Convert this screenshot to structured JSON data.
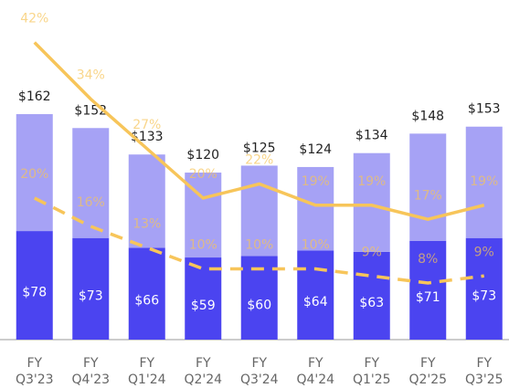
{
  "chart_data": {
    "type": "stacked-bar-line",
    "categories": [
      [
        "FY",
        "Q3'23"
      ],
      [
        "FY",
        "Q4'23"
      ],
      [
        "FY",
        "Q1'24"
      ],
      [
        "FY",
        "Q2'24"
      ],
      [
        "FY",
        "Q3'24"
      ],
      [
        "FY",
        "Q4'24"
      ],
      [
        "FY",
        "Q1'25"
      ],
      [
        "FY",
        "Q2'25"
      ],
      [
        "FY",
        "Q3'25"
      ]
    ],
    "ylim": [
      0,
      244
    ],
    "y2lim": [
      0,
      48
    ],
    "series": [
      {
        "kind": "bar",
        "color": "#4b44f0",
        "values": [
          78,
          73,
          66,
          59,
          60,
          64,
          63,
          71,
          73
        ],
        "value_labels": [
          "$78",
          "$73",
          "$66",
          "$59",
          "$60",
          "$64",
          "$63",
          "$71",
          "$73"
        ]
      },
      {
        "kind": "bar",
        "color": "#a6a2f5",
        "values": [
          84,
          79,
          67,
          61,
          65,
          60,
          71,
          77,
          80
        ]
      },
      {
        "kind": "line",
        "axis": "y2",
        "color": "#f7c55a",
        "dash": false,
        "values": [
          42,
          34,
          27,
          20,
          22,
          19,
          19,
          17,
          19
        ],
        "value_labels": [
          "42%",
          "34%",
          "27%",
          "20%",
          "22%",
          "19%",
          "19%",
          "17%",
          "19%"
        ]
      },
      {
        "kind": "line",
        "axis": "y2",
        "color": "#f7c55a",
        "dash": true,
        "values": [
          20,
          16,
          13,
          10,
          10,
          10,
          9,
          8,
          9
        ],
        "value_labels": [
          "20%",
          "16%",
          "13%",
          "10%",
          "10%",
          "10%",
          "9%",
          "8%",
          "9%"
        ]
      }
    ],
    "totals": [
      162,
      152,
      133,
      120,
      125,
      124,
      134,
      148,
      153
    ],
    "totals_labels": [
      "$162",
      "$152",
      "$133",
      "$120",
      "$125",
      "$124",
      "$134",
      "$148",
      "$153"
    ]
  }
}
